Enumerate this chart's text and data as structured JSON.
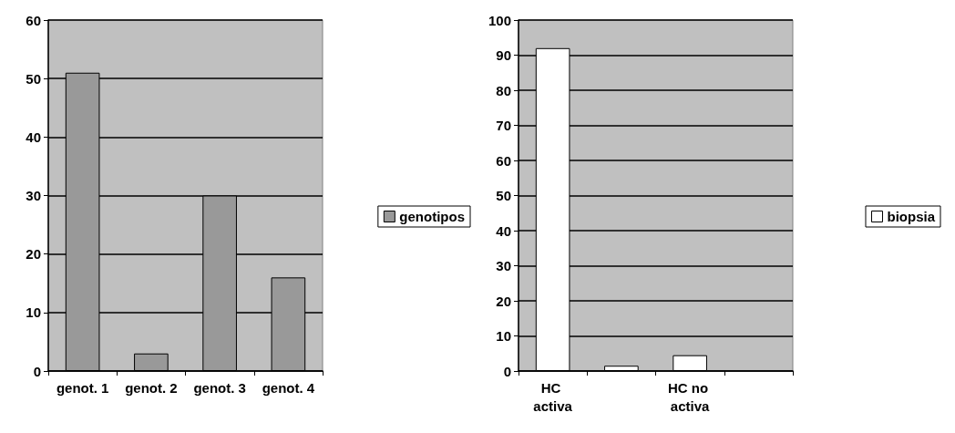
{
  "chart_data": [
    {
      "type": "bar",
      "categories": [
        "genot. 1",
        "genot. 2",
        "genot. 3",
        "genot. 4"
      ],
      "series": [
        {
          "name": "genotipos",
          "color": "#999999",
          "values": [
            51,
            3,
            30,
            16
          ]
        }
      ],
      "ylim": [
        0,
        60
      ],
      "yticks": [
        0,
        10,
        20,
        30,
        40,
        50,
        60
      ],
      "grid": "y",
      "legend": "right"
    },
    {
      "type": "bar",
      "categories": [
        "HC activa",
        null,
        "HC no activa",
        null
      ],
      "series": [
        {
          "name": "biopsia",
          "color": "#ffffff",
          "values": [
            92,
            1.5,
            4.5,
            null
          ]
        }
      ],
      "ylim": [
        0,
        100
      ],
      "yticks": [
        0,
        10,
        20,
        30,
        40,
        50,
        60,
        70,
        80,
        90,
        100
      ],
      "grid": "y",
      "legend": "right"
    }
  ]
}
